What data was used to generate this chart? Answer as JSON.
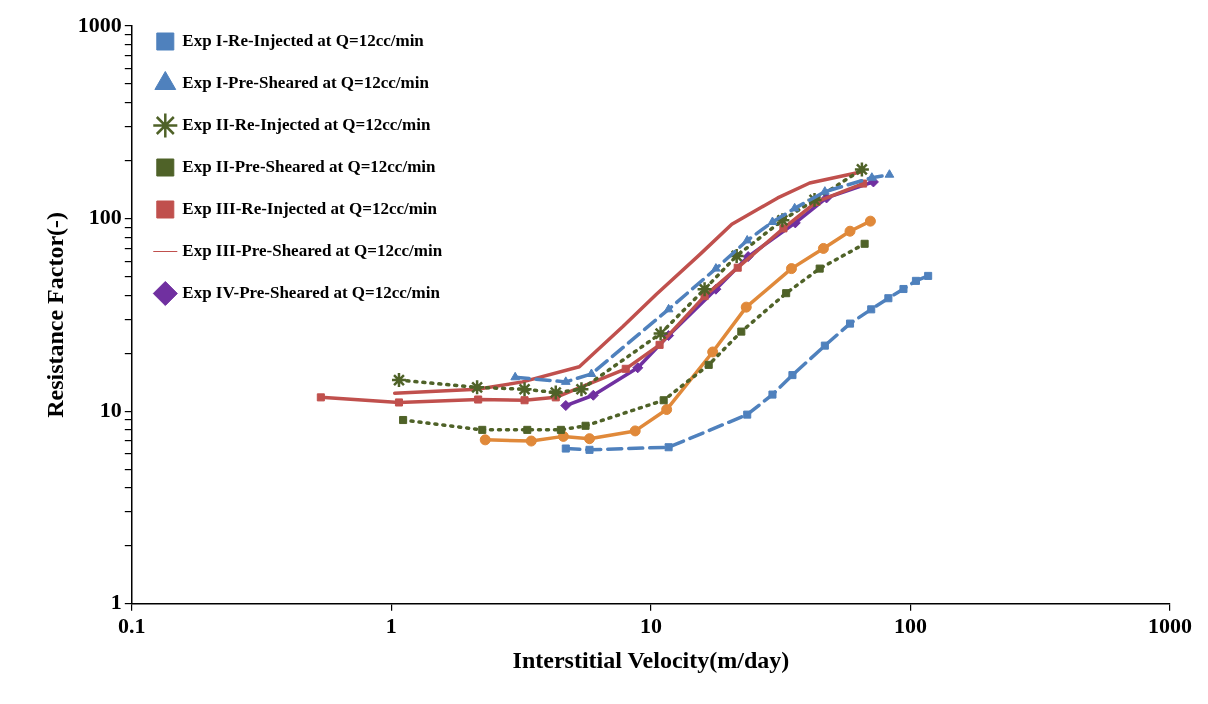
{
  "chart_data": {
    "type": "line",
    "xlabel": "Interstitial Velocity(m/day)",
    "ylabel": "Resistance Factor(-)",
    "log": "xy",
    "grid": false,
    "legend": "top left",
    "xlim": [
      0.1,
      1000
    ],
    "xticks": [
      0.1,
      1,
      10,
      100,
      1000
    ],
    "ylim": [
      1,
      1000
    ],
    "yticks": [
      1,
      {
        "value": 2,
        "label": null
      },
      {
        "value": 3,
        "label": null
      },
      {
        "value": 4,
        "label": null
      },
      {
        "value": 5,
        "label": null
      },
      {
        "value": 6,
        "label": null
      },
      {
        "value": 7,
        "label": null
      },
      {
        "value": 8,
        "label": null
      },
      {
        "value": 9,
        "label": null
      },
      10,
      {
        "value": 20,
        "label": null
      },
      {
        "value": 30,
        "label": null
      },
      {
        "value": 40,
        "label": null
      },
      {
        "value": 50,
        "label": null
      },
      {
        "value": 60,
        "label": null
      },
      {
        "value": 70,
        "label": null
      },
      {
        "value": 80,
        "label": null
      },
      {
        "value": 90,
        "label": null
      },
      100,
      {
        "value": 200,
        "label": null
      },
      {
        "value": 300,
        "label": null
      },
      {
        "value": 400,
        "label": null
      },
      {
        "value": 500,
        "label": null
      },
      {
        "value": 600,
        "label": null
      },
      {
        "value": 700,
        "label": null
      },
      {
        "value": 800,
        "label": null
      },
      {
        "value": 900,
        "label": null
      },
      1000
    ],
    "series": [
      {
        "name": "Exp I-Re-Injected at Q=12cc/min",
        "color": "#4f81bd",
        "marker": "square",
        "line_style": "dashed",
        "x": [
          4.7,
          5.8,
          11.7,
          23.5,
          29.4,
          35.1,
          46.8,
          58.5,
          70.6,
          82.2,
          94,
          105,
          117
        ],
        "values": [
          6.4,
          6.3,
          6.5,
          9.6,
          12.2,
          15.4,
          21.9,
          28.5,
          33.8,
          38.6,
          43.1,
          47.5,
          50.4
        ]
      },
      {
        "name": "Exp I-Pre-Sheared at Q=12cc/min",
        "color": "#4f81bd",
        "marker": "triangle",
        "line_style": "dashed",
        "x": [
          3,
          4.7,
          5.9,
          11.7,
          17.8,
          23.5,
          29.4,
          35.8,
          46.8,
          71,
          83
        ],
        "values": [
          15,
          14.2,
          15.6,
          33.8,
          55,
          77,
          96,
          113,
          138,
          163,
          169
        ]
      },
      {
        "name": "Exp II-Re-Injected at Q=12cc/min",
        "color": "#4f6228",
        "marker": "cross",
        "line_style": "dotted",
        "x": [
          1.07,
          2.14,
          3.26,
          4.3,
          5.4,
          10.9,
          16.1,
          21.4,
          32.1,
          42.7,
          65
        ],
        "values": [
          14.5,
          13.3,
          13,
          12.5,
          13,
          25.3,
          43,
          64,
          98,
          125,
          180
        ]
      },
      {
        "name": "Exp II-Pre-Sheared at Q=12cc/min",
        "color": "#4f6228",
        "marker": "square",
        "line_style": "dotted",
        "x": [
          1.11,
          2.24,
          3.34,
          4.5,
          5.6,
          11.2,
          16.7,
          22.3,
          33.2,
          44.7,
          66.6
        ],
        "values": [
          9,
          8,
          8,
          8,
          8.4,
          11.4,
          17.4,
          25.9,
          41,
          55,
          74
        ]
      },
      {
        "name": "Exp III-Re-Injected at Q=12cc/min",
        "color": "#c0504d",
        "marker": "square",
        "line_style": "solid",
        "x": [
          0.535,
          1.07,
          2.16,
          3.26,
          4.3,
          8,
          10.8,
          16.1,
          21.6,
          32.4,
          43.4,
          65.7
        ],
        "values": [
          11.8,
          11.1,
          11.5,
          11.4,
          11.8,
          16.6,
          22.1,
          39.6,
          55.6,
          89,
          122,
          152
        ]
      },
      {
        "name": "Exp III-Pre-Sheared at Q=12cc/min",
        "color": "#c0504d",
        "marker": "none",
        "line_style": "solid",
        "x": [
          1.03,
          2.14,
          3.2,
          5.3,
          7.8,
          10.5,
          15.6,
          20.5,
          30.8,
          40.9,
          65
        ],
        "values": [
          12.4,
          13,
          14.2,
          17,
          27.5,
          40.5,
          66,
          93.5,
          128,
          153,
          175
        ]
      },
      {
        "name": "Exp IV-Pre-Sheared at Q=12cc/min",
        "color": "#7030a0",
        "marker": "diamond",
        "line_style": "solid",
        "x": [
          4.7,
          6,
          8.9,
          11.7,
          17.8,
          23.7,
          36,
          47.5,
          72
        ],
        "values": [
          10.7,
          12.1,
          16.8,
          24.7,
          43,
          63.5,
          95,
          128,
          155
        ]
      },
      {
        "color": "#e0893a",
        "marker": "circle",
        "line_style": "solid",
        "x": [
          2.3,
          3.46,
          4.6,
          5.8,
          8.7,
          11.5,
          17.3,
          23.3,
          34.8,
          46.2,
          58.5,
          70.1
        ],
        "values": [
          7.1,
          7,
          7.4,
          7.2,
          7.9,
          10.2,
          20.3,
          34.7,
          55,
          70,
          86,
          97
        ]
      }
    ]
  }
}
